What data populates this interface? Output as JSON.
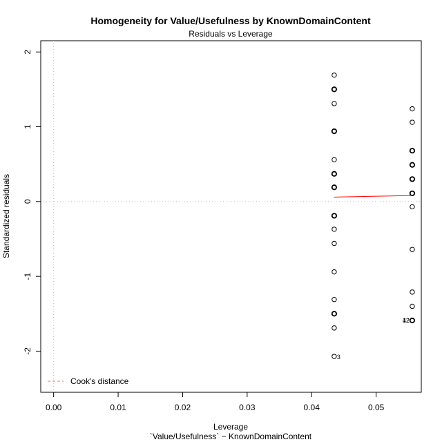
{
  "chart_data": {
    "type": "scatter",
    "title": "Homogeneity for Value/Usefulness by KnownDomainContent",
    "subtitle": "Residuals vs Leverage",
    "xlabel": "Leverage",
    "xlabel2": "`Value/Usefulness` ~ KnownDomainContent",
    "ylabel": "Standardized residuals",
    "xlim": [
      -0.002,
      0.057
    ],
    "ylim": [
      -2.55,
      2.15
    ],
    "x_ticks": [
      0.0,
      0.01,
      0.02,
      0.03,
      0.04,
      0.05
    ],
    "x_tick_labels": [
      "0.00",
      "0.01",
      "0.02",
      "0.03",
      "0.04",
      "0.05"
    ],
    "y_ticks": [
      -2,
      -1,
      0,
      1,
      2
    ],
    "y_tick_labels": [
      "-2",
      "-1",
      "0",
      "1",
      "2"
    ],
    "grid": false,
    "reference_lines": [
      {
        "axis": "y",
        "value": 0,
        "style": "dotted",
        "color": "#bbbbbb"
      },
      {
        "axis": "x",
        "value": 0,
        "style": "dotted",
        "color": "#bbbbbb"
      }
    ],
    "points": [
      {
        "x": 0.0435,
        "y": 1.69
      },
      {
        "x": 0.0435,
        "y": 1.5
      },
      {
        "x": 0.0435,
        "y": 1.31
      },
      {
        "x": 0.0435,
        "y": 0.94
      },
      {
        "x": 0.0435,
        "y": 0.56
      },
      {
        "x": 0.0435,
        "y": 0.37
      },
      {
        "x": 0.0435,
        "y": 0.19
      },
      {
        "x": 0.0435,
        "y": -0.19
      },
      {
        "x": 0.0435,
        "y": -0.37
      },
      {
        "x": 0.0435,
        "y": -0.56
      },
      {
        "x": 0.0435,
        "y": -0.94
      },
      {
        "x": 0.0435,
        "y": -1.31
      },
      {
        "x": 0.0435,
        "y": -1.5
      },
      {
        "x": 0.0435,
        "y": -1.69
      },
      {
        "x": 0.0435,
        "y": -2.07,
        "label": "3"
      },
      {
        "x": 0.0556,
        "y": 1.24
      },
      {
        "x": 0.0556,
        "y": 1.06
      },
      {
        "x": 0.0556,
        "y": 0.68
      },
      {
        "x": 0.0556,
        "y": 0.49
      },
      {
        "x": 0.0556,
        "y": 0.3
      },
      {
        "x": 0.0556,
        "y": 0.11
      },
      {
        "x": 0.0556,
        "y": -0.07
      },
      {
        "x": 0.0556,
        "y": -0.64
      },
      {
        "x": 0.0556,
        "y": -1.21
      },
      {
        "x": 0.0556,
        "y": -1.4
      },
      {
        "x": 0.0556,
        "y": -1.59,
        "label": "42"
      },
      {
        "x": 0.0556,
        "y": -1.59,
        "label": "12"
      }
    ],
    "bold_points": [
      {
        "x": 0.0435,
        "y": 1.5
      },
      {
        "x": 0.0435,
        "y": 0.94
      },
      {
        "x": 0.0435,
        "y": 0.37
      },
      {
        "x": 0.0435,
        "y": 0.19
      },
      {
        "x": 0.0435,
        "y": -0.19
      },
      {
        "x": 0.0435,
        "y": -1.5
      },
      {
        "x": 0.0556,
        "y": 0.68
      },
      {
        "x": 0.0556,
        "y": 0.49
      },
      {
        "x": 0.0556,
        "y": 0.3
      },
      {
        "x": 0.0556,
        "y": 0.11
      },
      {
        "x": 0.0556,
        "y": -1.59
      }
    ],
    "smooth_line": {
      "color": "#ff0000",
      "points": [
        {
          "x": 0.0435,
          "y": 0.06
        },
        {
          "x": 0.0556,
          "y": 0.08
        }
      ]
    },
    "legend": {
      "position": "bottom-left",
      "entries": [
        {
          "label": "Cook's distance",
          "color": "#ff6666",
          "style": "dashed"
        }
      ]
    }
  }
}
